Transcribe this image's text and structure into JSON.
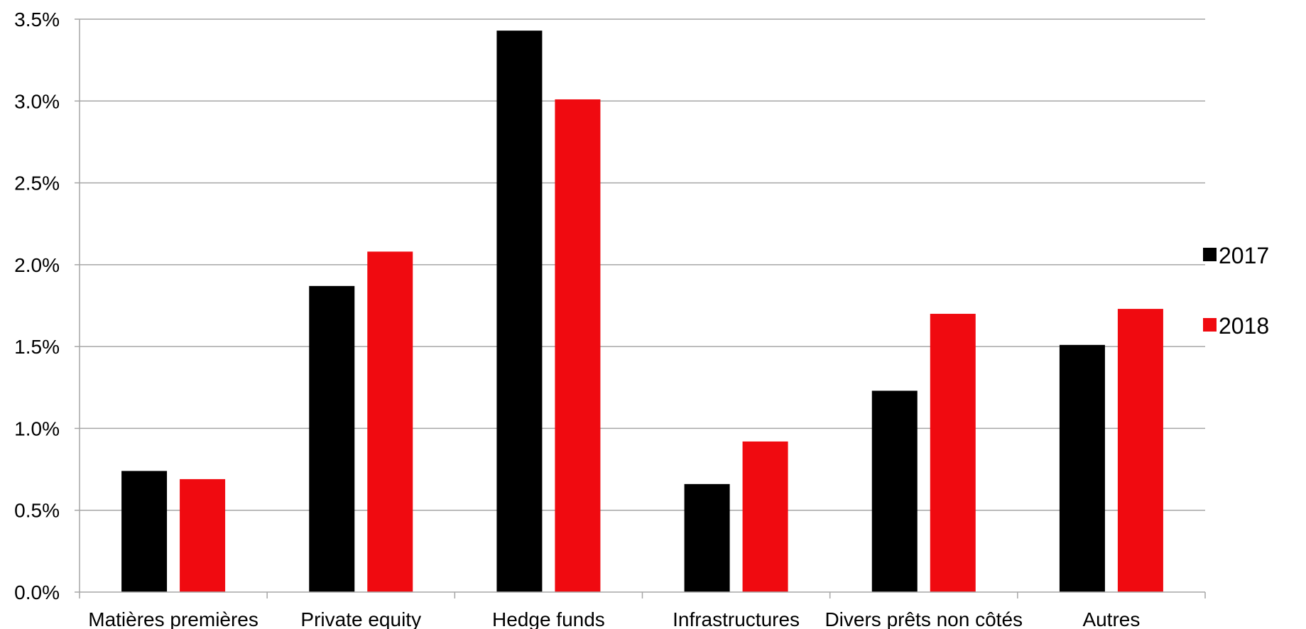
{
  "chart_data": {
    "type": "bar",
    "categories": [
      "Matières premières",
      "Private equity",
      "Hedge funds",
      "Infrastructures",
      "Divers prêts non côtés",
      "Autres"
    ],
    "series": [
      {
        "name": "2017",
        "color": "#000000",
        "values": [
          0.74,
          1.87,
          3.43,
          0.66,
          1.23,
          1.51
        ]
      },
      {
        "name": "2018",
        "color": "#f00a10",
        "values": [
          0.69,
          2.08,
          3.01,
          0.92,
          1.7,
          1.73
        ]
      }
    ],
    "yticks": [
      "0.0%",
      "0.5%",
      "1.0%",
      "1.5%",
      "2.0%",
      "2.5%",
      "3.0%",
      "3.5%"
    ],
    "ylim": [
      0,
      3.5
    ],
    "grid": true,
    "legend_position": "right"
  }
}
